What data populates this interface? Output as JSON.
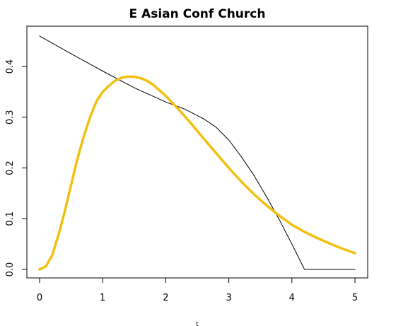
{
  "chart_data": {
    "type": "line",
    "title": "E Asian Conf Church",
    "xlabel": "t",
    "ylabel": "",
    "xlim": [
      0,
      5
    ],
    "ylim": [
      0,
      0.46
    ],
    "xticks": [
      "0",
      "1",
      "2",
      "3",
      "4",
      "5"
    ],
    "yticks": [
      "0.0",
      "0.1",
      "0.2",
      "0.3",
      "0.4"
    ],
    "grid": false,
    "series": [
      {
        "color": "#000000",
        "line_width": "thin",
        "x": [
          0,
          0.5,
          1.0,
          1.5,
          2.0,
          2.3,
          2.6,
          2.8,
          3.0,
          3.2,
          3.4,
          3.6,
          3.8,
          4.0,
          4.2,
          4.5,
          5.0
        ],
        "y": [
          0.46,
          0.425,
          0.391,
          0.358,
          0.33,
          0.316,
          0.297,
          0.28,
          0.255,
          0.222,
          0.185,
          0.143,
          0.098,
          0.05,
          0.0,
          0.0,
          0.0
        ]
      },
      {
        "color": "#f2c00f",
        "line_width": "thick",
        "x": [
          0,
          0.1,
          0.2,
          0.3,
          0.4,
          0.5,
          0.6,
          0.7,
          0.8,
          0.9,
          1.0,
          1.1,
          1.2,
          1.3,
          1.4,
          1.5,
          1.6,
          1.7,
          1.8,
          2.0,
          2.2,
          2.4,
          2.6,
          2.8,
          3.0,
          3.2,
          3.4,
          3.6,
          3.8,
          4.0,
          4.2,
          4.4,
          4.6,
          4.8,
          5.0
        ],
        "y": [
          0.0,
          0.006,
          0.028,
          0.068,
          0.115,
          0.167,
          0.218,
          0.262,
          0.3,
          0.331,
          0.35,
          0.362,
          0.372,
          0.378,
          0.38,
          0.38,
          0.377,
          0.372,
          0.364,
          0.342,
          0.316,
          0.288,
          0.258,
          0.229,
          0.2,
          0.173,
          0.148,
          0.126,
          0.106,
          0.088,
          0.074,
          0.062,
          0.051,
          0.041,
          0.032
        ]
      }
    ]
  }
}
